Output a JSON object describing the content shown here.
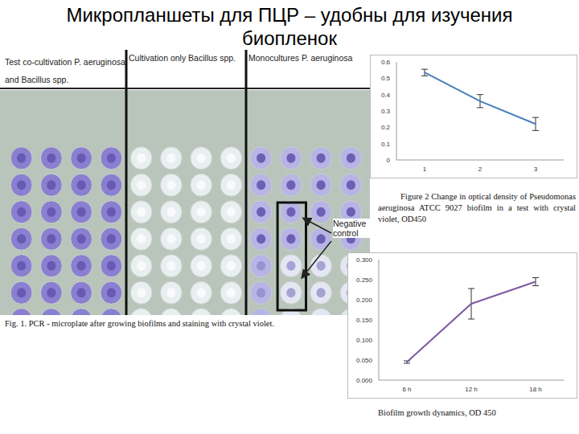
{
  "title": "Микропланшеты для ПЦР – удобны для изучения биопленок",
  "figure1": {
    "header": [
      "Test co-cultivation P. aeruginosa and Bacillus spp.",
      "Cultivation only Bacillus spp.",
      "Monocultures P. aeruginosa"
    ],
    "negative_control": "Negative control",
    "caption": "Fig. 1. PCR - microplate after growing biofilms and staining with crystal violet."
  },
  "chart_data": [
    {
      "type": "line",
      "caption": "Figure 2 Change in optical density of Pseudomonas aeruginosa ATCC 9027 biofilm in a test with crystal violet, OD450",
      "categories": [
        "1",
        "2",
        "3"
      ],
      "values": [
        0.535,
        0.36,
        0.22
      ],
      "errors": [
        0.02,
        0.04,
        0.04
      ],
      "color": "#4a7ebb",
      "ylim": [
        0,
        0.6
      ],
      "yticks": [
        0,
        0.1,
        0.2,
        0.3,
        0.4,
        0.5,
        0.6
      ],
      "grid": false
    },
    {
      "type": "line",
      "caption": "Biofilm growth dynamics, OD 450",
      "categories": [
        "6 h",
        "12 h",
        "18 h"
      ],
      "values": [
        0.045,
        0.19,
        0.245
      ],
      "errors": [
        0.003,
        0.038,
        0.01
      ],
      "color": "#7f5aa2",
      "ylim": [
        0,
        0.3
      ],
      "yticks": [
        {
          "value": 0,
          "label": "0.000"
        },
        {
          "value": 0.05,
          "label": "0.050"
        },
        {
          "value": 0.1,
          "label": "0.100"
        },
        {
          "value": 0.15,
          "label": "0.150"
        },
        {
          "value": 0.2,
          "label": "0.200"
        },
        {
          "value": 0.25,
          "label": "0.250"
        },
        {
          "value": 0.3,
          "label": "0.300"
        }
      ],
      "grid": false
    }
  ]
}
